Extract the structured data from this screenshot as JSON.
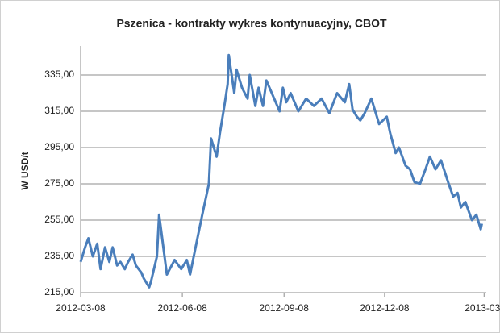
{
  "chart_data": {
    "type": "line",
    "title": "Pszenica - kontrakty wykres kontynuacyjny, CBOT",
    "y_label": "W USD/t",
    "x": [
      "2012-03-08",
      "2012-03-12",
      "2012-03-15",
      "2012-03-19",
      "2012-03-23",
      "2012-03-26",
      "2012-03-30",
      "2012-04-03",
      "2012-04-06",
      "2012-04-10",
      "2012-04-13",
      "2012-04-17",
      "2012-04-20",
      "2012-04-24",
      "2012-04-27",
      "2012-05-02",
      "2012-05-04",
      "2012-05-09",
      "2012-05-11",
      "2012-05-16",
      "2012-05-18",
      "2012-05-25",
      "2012-06-01",
      "2012-06-07",
      "2012-06-12",
      "2012-06-15",
      "2012-06-20",
      "2012-06-26",
      "2012-07-02",
      "2012-07-04",
      "2012-07-09",
      "2012-07-12",
      "2012-07-16",
      "2012-07-19",
      "2012-07-20",
      "2012-07-25",
      "2012-07-27",
      "2012-08-01",
      "2012-08-06",
      "2012-08-08",
      "2012-08-13",
      "2012-08-16",
      "2012-08-20",
      "2012-08-23",
      "2012-09-04",
      "2012-09-07",
      "2012-09-10",
      "2012-09-14",
      "2012-09-21",
      "2012-09-28",
      "2012-10-05",
      "2012-10-12",
      "2012-10-19",
      "2012-10-26",
      "2012-11-02",
      "2012-11-06",
      "2012-11-09",
      "2012-11-13",
      "2012-11-16",
      "2012-11-20",
      "2012-11-26",
      "2012-12-03",
      "2012-12-10",
      "2012-12-13",
      "2012-12-18",
      "2012-12-21",
      "2012-12-27",
      "2012-12-31",
      "2013-01-04",
      "2013-01-09",
      "2013-01-14",
      "2013-01-18",
      "2013-01-23",
      "2013-01-28",
      "2013-02-04",
      "2013-02-08",
      "2013-02-12",
      "2013-02-15",
      "2013-02-19",
      "2013-02-25",
      "2013-03-01",
      "2013-03-05",
      "2013-03-06"
    ],
    "series": [
      {
        "color": "#4a7ebb",
        "values": [
          232,
          240,
          245,
          235,
          242,
          228,
          240,
          232,
          240,
          230,
          232,
          228,
          232,
          236,
          230,
          226,
          223,
          218,
          222,
          235,
          258,
          225,
          233,
          228,
          233,
          225,
          240,
          258,
          275,
          300,
          290,
          303,
          318,
          330,
          346,
          325,
          338,
          328,
          322,
          335,
          318,
          328,
          318,
          332,
          315,
          328,
          320,
          325,
          315,
          322,
          318,
          322,
          314,
          325,
          320,
          330,
          316,
          312,
          310,
          314,
          322,
          308,
          312,
          303,
          292,
          295,
          285,
          283,
          276,
          275,
          283,
          290,
          283,
          288,
          275,
          268,
          270,
          262,
          265,
          255,
          258,
          250,
          253
        ]
      }
    ],
    "xlim": [
      "2012-03-08",
      "2013-03-10"
    ],
    "xticks": [
      "2012-03-08",
      "2012-06-08",
      "2012-09-08",
      "2012-12-08",
      {
        "value": "2013-03-08",
        "label": "2013-03-"
      }
    ],
    "ylim": [
      215,
      351
    ],
    "yticks": [
      {
        "value": 215,
        "label": "215,00"
      },
      {
        "value": 235,
        "label": "235,00"
      },
      {
        "value": 255,
        "label": "255,00"
      },
      {
        "value": 275,
        "label": "275,00"
      },
      {
        "value": 295,
        "label": "295,00"
      },
      {
        "value": 315,
        "label": "315,00"
      },
      {
        "value": 335,
        "label": "335,00"
      }
    ],
    "grid": true
  }
}
